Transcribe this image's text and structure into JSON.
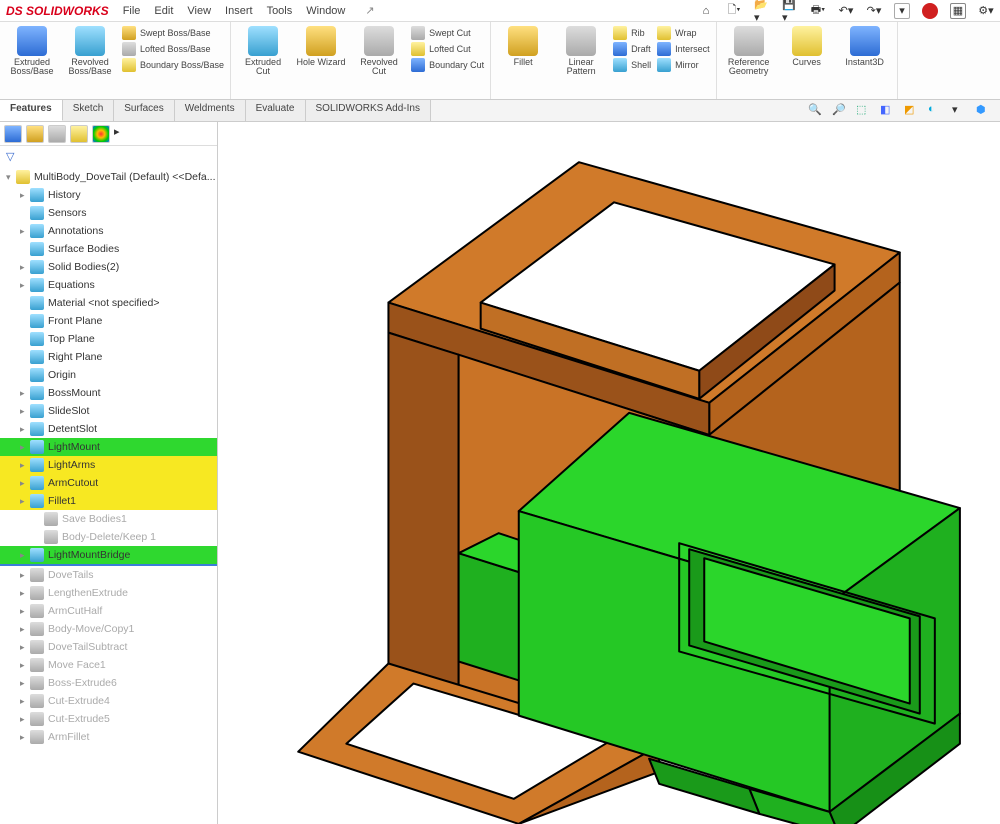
{
  "app": {
    "name": "SOLIDWORKS"
  },
  "menu": [
    "File",
    "Edit",
    "View",
    "Insert",
    "Tools",
    "Window"
  ],
  "ribbon": {
    "groups": [
      {
        "big": [
          {
            "label": "Extruded Boss/Base"
          },
          {
            "label": "Revolved Boss/Base"
          }
        ],
        "mini": [
          {
            "label": "Swept Boss/Base"
          },
          {
            "label": "Lofted Boss/Base"
          },
          {
            "label": "Boundary Boss/Base"
          }
        ]
      },
      {
        "big": [
          {
            "label": "Extruded Cut"
          },
          {
            "label": "Hole Wizard"
          },
          {
            "label": "Revolved Cut"
          }
        ],
        "mini": [
          {
            "label": "Swept Cut"
          },
          {
            "label": "Lofted Cut"
          },
          {
            "label": "Boundary Cut"
          }
        ]
      },
      {
        "big": [
          {
            "label": "Fillet"
          },
          {
            "label": "Linear Pattern"
          }
        ],
        "mini": [
          {
            "label": "Rib"
          },
          {
            "label": "Draft"
          },
          {
            "label": "Shell"
          }
        ],
        "mini2": [
          {
            "label": "Wrap"
          },
          {
            "label": "Intersect"
          },
          {
            "label": "Mirror"
          }
        ]
      },
      {
        "big": [
          {
            "label": "Reference Geometry"
          },
          {
            "label": "Curves"
          },
          {
            "label": "Instant3D"
          }
        ]
      }
    ]
  },
  "tabs": [
    "Features",
    "Sketch",
    "Surfaces",
    "Weldments",
    "Evaluate",
    "SOLIDWORKS Add-Ins"
  ],
  "activeTab": "Features",
  "tree": {
    "root": "MultiBody_DoveTail (Default) <<Defa...",
    "items": [
      {
        "label": "History",
        "depth": 1,
        "exp": "▸"
      },
      {
        "label": "Sensors",
        "depth": 1
      },
      {
        "label": "Annotations",
        "depth": 1,
        "exp": "▸"
      },
      {
        "label": "Surface Bodies",
        "depth": 1
      },
      {
        "label": "Solid Bodies(2)",
        "depth": 1,
        "exp": "▸"
      },
      {
        "label": "Equations",
        "depth": 1,
        "exp": "▸"
      },
      {
        "label": "Material <not specified>",
        "depth": 1
      },
      {
        "label": "Front Plane",
        "depth": 1
      },
      {
        "label": "Top Plane",
        "depth": 1
      },
      {
        "label": "Right Plane",
        "depth": 1
      },
      {
        "label": "Origin",
        "depth": 1
      },
      {
        "label": "BossMount",
        "depth": 1,
        "exp": "▸"
      },
      {
        "label": "SlideSlot",
        "depth": 1,
        "exp": "▸"
      },
      {
        "label": "DetentSlot",
        "depth": 1,
        "exp": "▸"
      },
      {
        "label": "LightMount",
        "depth": 1,
        "hl": "g",
        "exp": "▸"
      },
      {
        "label": "LightArms",
        "depth": 1,
        "hl": "y",
        "exp": "▸"
      },
      {
        "label": "ArmCutout",
        "depth": 1,
        "hl": "y",
        "exp": "▸"
      },
      {
        "label": "Fillet1",
        "depth": 1,
        "hl": "y",
        "exp": "▸"
      },
      {
        "label": "Save Bodies1",
        "depth": 2,
        "dim": true
      },
      {
        "label": "Body-Delete/Keep 1",
        "depth": 2,
        "dim": true
      },
      {
        "label": "LightMountBridge",
        "depth": 1,
        "hl": "g",
        "exp": "▸"
      },
      {
        "__rollbar__": true
      },
      {
        "label": "DoveTails",
        "depth": 1,
        "dim": true,
        "exp": "▸"
      },
      {
        "label": "LengthenExtrude",
        "depth": 1,
        "dim": true,
        "exp": "▸"
      },
      {
        "label": "ArmCutHalf",
        "depth": 1,
        "dim": true,
        "exp": "▸"
      },
      {
        "label": "Body-Move/Copy1",
        "depth": 1,
        "dim": true,
        "exp": "▸"
      },
      {
        "label": "DoveTailSubtract",
        "depth": 1,
        "dim": true,
        "exp": "▸"
      },
      {
        "label": "Move Face1",
        "depth": 1,
        "dim": true,
        "exp": "▸"
      },
      {
        "label": "Boss-Extrude6",
        "depth": 1,
        "dim": true,
        "exp": "▸"
      },
      {
        "label": "Cut-Extrude4",
        "depth": 1,
        "dim": true,
        "exp": "▸"
      },
      {
        "label": "Cut-Extrude5",
        "depth": 1,
        "dim": true,
        "exp": "▸"
      },
      {
        "label": "ArmFillet",
        "depth": 1,
        "dim": true,
        "exp": "▸"
      }
    ]
  },
  "model": {
    "bracket_color_top": "#d07a2a",
    "bracket_color_side": "#b4631d",
    "bracket_edge": "#000000",
    "block_color_top": "#2bd62b",
    "block_color_side": "#1fb01f",
    "block_color_front": "#25c825",
    "block_edge": "#000000",
    "background": "#ffffff"
  }
}
